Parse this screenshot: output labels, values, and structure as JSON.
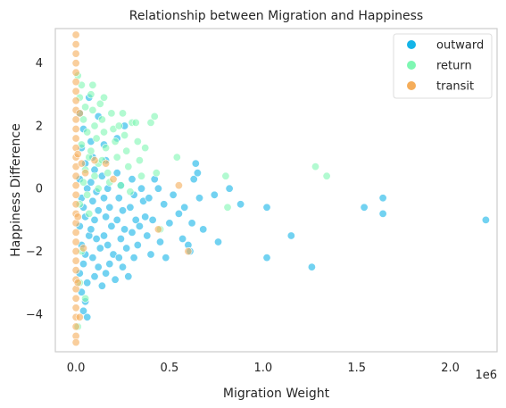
{
  "chart_data": {
    "type": "scatter",
    "title": "Relationship between Migration and Happiness",
    "xlabel": "Migration Weight",
    "ylabel": "Happiness Difference",
    "x_offset_label": "1e6",
    "xlim": [
      -0.11,
      2.25
    ],
    "ylim": [
      -5.2,
      5.1
    ],
    "x_units": "millions (×1e6)",
    "x_ticks": [
      0.0,
      0.5,
      1.0,
      1.5,
      2.0
    ],
    "x_tick_labels": [
      "0.0",
      "0.5",
      "1.0",
      "1.5",
      "2.0"
    ],
    "y_ticks": [
      -4,
      -2,
      0,
      2,
      4
    ],
    "y_tick_labels": [
      "−4",
      "−2",
      "0",
      "2",
      "4"
    ],
    "grid": false,
    "legend_position": "top-right",
    "series": [
      {
        "name": "outward",
        "color": "#14b4e8",
        "points": [
          [
            0.02,
            2.4
          ],
          [
            0.04,
            1.9
          ],
          [
            0.03,
            1.3
          ],
          [
            0.05,
            0.8
          ],
          [
            0.02,
            0.3
          ],
          [
            0.06,
            0.0
          ],
          [
            0.03,
            -0.3
          ],
          [
            0.04,
            -0.6
          ],
          [
            0.05,
            -0.9
          ],
          [
            0.02,
            -1.2
          ],
          [
            0.07,
            -1.5
          ],
          [
            0.03,
            -1.8
          ],
          [
            0.05,
            -2.1
          ],
          [
            0.04,
            -2.4
          ],
          [
            0.02,
            -2.7
          ],
          [
            0.06,
            -3.0
          ],
          [
            0.03,
            -3.3
          ],
          [
            0.05,
            -3.6
          ],
          [
            0.04,
            -3.9
          ],
          [
            0.06,
            -4.1
          ],
          [
            0.08,
            1.5
          ],
          [
            0.09,
            1.0
          ],
          [
            0.1,
            0.6
          ],
          [
            0.08,
            0.2
          ],
          [
            0.11,
            -0.1
          ],
          [
            0.09,
            -0.4
          ],
          [
            0.12,
            -0.7
          ],
          [
            0.1,
            -1.0
          ],
          [
            0.08,
            -1.3
          ],
          [
            0.11,
            -1.6
          ],
          [
            0.13,
            -1.9
          ],
          [
            0.09,
            -2.2
          ],
          [
            0.12,
            -2.5
          ],
          [
            0.1,
            -2.8
          ],
          [
            0.14,
            -3.1
          ],
          [
            0.15,
            1.4
          ],
          [
            0.16,
            0.9
          ],
          [
            0.14,
            0.4
          ],
          [
            0.17,
            0.0
          ],
          [
            0.15,
            -0.3
          ],
          [
            0.18,
            -0.6
          ],
          [
            0.16,
            -0.9
          ],
          [
            0.19,
            -1.2
          ],
          [
            0.15,
            -1.5
          ],
          [
            0.17,
            -1.8
          ],
          [
            0.2,
            -2.1
          ],
          [
            0.18,
            -2.4
          ],
          [
            0.16,
            -2.7
          ],
          [
            0.21,
            -2.9
          ],
          [
            0.22,
            0.5
          ],
          [
            0.24,
            0.1
          ],
          [
            0.23,
            -0.3
          ],
          [
            0.25,
            -0.7
          ],
          [
            0.22,
            -1.0
          ],
          [
            0.26,
            -1.3
          ],
          [
            0.24,
            -1.6
          ],
          [
            0.27,
            -1.9
          ],
          [
            0.23,
            -2.2
          ],
          [
            0.25,
            -2.5
          ],
          [
            0.28,
            -2.8
          ],
          [
            0.3,
            0.3
          ],
          [
            0.31,
            -0.2
          ],
          [
            0.29,
            -0.6
          ],
          [
            0.32,
            -1.0
          ],
          [
            0.3,
            -1.4
          ],
          [
            0.33,
            -1.8
          ],
          [
            0.31,
            -2.2
          ],
          [
            0.34,
            -1.2
          ],
          [
            0.36,
            -0.4
          ],
          [
            0.35,
            0.0
          ],
          [
            0.37,
            -0.9
          ],
          [
            0.38,
            -1.5
          ],
          [
            0.4,
            -2.1
          ],
          [
            0.39,
            -0.3
          ],
          [
            0.42,
            0.3
          ],
          [
            0.44,
            0.0
          ],
          [
            0.41,
            -1.0
          ],
          [
            0.45,
            -1.7
          ],
          [
            0.47,
            -0.5
          ],
          [
            0.48,
            -2.2
          ],
          [
            0.5,
            -1.1
          ],
          [
            0.52,
            -0.2
          ],
          [
            0.55,
            -0.8
          ],
          [
            0.57,
            -1.6
          ],
          [
            0.58,
            -0.6
          ],
          [
            0.6,
            -1.8
          ],
          [
            0.61,
            -2.0
          ],
          [
            0.62,
            -1.1
          ],
          [
            0.63,
            0.3
          ],
          [
            0.64,
            0.8
          ],
          [
            0.65,
            0.5
          ],
          [
            0.66,
            -0.3
          ],
          [
            0.68,
            -1.3
          ],
          [
            0.74,
            -0.2
          ],
          [
            0.76,
            -1.7
          ],
          [
            0.82,
            0.0
          ],
          [
            0.88,
            -0.5
          ],
          [
            1.02,
            -0.6
          ],
          [
            1.02,
            -2.2
          ],
          [
            1.15,
            -1.5
          ],
          [
            1.26,
            -2.5
          ],
          [
            1.54,
            -0.6
          ],
          [
            1.64,
            -0.3
          ],
          [
            1.64,
            -0.8
          ],
          [
            2.19,
            -1.0
          ],
          [
            0.26,
            2.0
          ],
          [
            0.12,
            2.3
          ],
          [
            0.07,
            2.9
          ],
          [
            0.22,
            1.6
          ]
        ]
      },
      {
        "name": "return",
        "color": "#7ef7b2",
        "points": [
          [
            0.01,
            3.6
          ],
          [
            0.03,
            3.3
          ],
          [
            0.02,
            2.9
          ],
          [
            0.05,
            2.6
          ],
          [
            0.04,
            2.2
          ],
          [
            0.06,
            1.8
          ],
          [
            0.03,
            1.4
          ],
          [
            0.07,
            1.0
          ],
          [
            0.05,
            0.6
          ],
          [
            0.04,
            0.2
          ],
          [
            0.06,
            -0.2
          ],
          [
            0.02,
            -0.5
          ],
          [
            0.08,
            3.0
          ],
          [
            0.09,
            2.5
          ],
          [
            0.1,
            2.0
          ],
          [
            0.11,
            1.6
          ],
          [
            0.08,
            1.2
          ],
          [
            0.12,
            0.8
          ],
          [
            0.1,
            0.4
          ],
          [
            0.13,
            2.7
          ],
          [
            0.14,
            2.2
          ],
          [
            0.15,
            1.8
          ],
          [
            0.16,
            1.3
          ],
          [
            0.14,
            0.9
          ],
          [
            0.17,
            0.5
          ],
          [
            0.19,
            2.4
          ],
          [
            0.2,
            1.9
          ],
          [
            0.21,
            1.5
          ],
          [
            0.22,
            1.0
          ],
          [
            0.23,
            2.0
          ],
          [
            0.25,
            2.4
          ],
          [
            0.26,
            1.7
          ],
          [
            0.27,
            1.2
          ],
          [
            0.28,
            0.7
          ],
          [
            0.3,
            2.1
          ],
          [
            0.32,
            2.1
          ],
          [
            0.33,
            1.5
          ],
          [
            0.34,
            0.9
          ],
          [
            0.35,
            0.4
          ],
          [
            0.37,
            1.3
          ],
          [
            0.4,
            2.1
          ],
          [
            0.42,
            2.3
          ],
          [
            0.43,
            0.5
          ],
          [
            0.45,
            -1.3
          ],
          [
            0.54,
            1.0
          ],
          [
            0.8,
            0.4
          ],
          [
            0.81,
            -0.6
          ],
          [
            1.28,
            0.7
          ],
          [
            1.34,
            0.4
          ],
          [
            0.18,
            0.2
          ],
          [
            0.12,
            0.0
          ],
          [
            0.07,
            -0.8
          ],
          [
            0.03,
            -2.0
          ],
          [
            0.02,
            -3.0
          ],
          [
            0.05,
            -3.5
          ],
          [
            0.01,
            -4.4
          ],
          [
            0.24,
            0.1
          ],
          [
            0.29,
            -0.1
          ],
          [
            0.15,
            2.9
          ],
          [
            0.09,
            3.3
          ]
        ]
      },
      {
        "name": "transit",
        "color": "#f5ad5a",
        "points": [
          [
            0.0,
            4.9
          ],
          [
            0.0,
            4.6
          ],
          [
            0.0,
            4.3
          ],
          [
            0.0,
            4.0
          ],
          [
            0.0,
            3.7
          ],
          [
            0.0,
            3.4
          ],
          [
            0.0,
            3.1
          ],
          [
            0.0,
            2.8
          ],
          [
            0.0,
            2.5
          ],
          [
            0.0,
            2.2
          ],
          [
            0.0,
            1.9
          ],
          [
            0.0,
            1.6
          ],
          [
            0.0,
            1.3
          ],
          [
            0.0,
            1.0
          ],
          [
            0.0,
            0.7
          ],
          [
            0.0,
            0.4
          ],
          [
            0.0,
            0.1
          ],
          [
            0.0,
            -0.2
          ],
          [
            0.0,
            -0.5
          ],
          [
            0.0,
            -0.8
          ],
          [
            0.0,
            -1.1
          ],
          [
            0.0,
            -1.4
          ],
          [
            0.0,
            -1.7
          ],
          [
            0.0,
            -2.0
          ],
          [
            0.0,
            -2.3
          ],
          [
            0.0,
            -2.6
          ],
          [
            0.0,
            -2.9
          ],
          [
            0.0,
            -3.2
          ],
          [
            0.0,
            -3.5
          ],
          [
            0.0,
            -3.8
          ],
          [
            0.0,
            -4.1
          ],
          [
            0.0,
            -4.4
          ],
          [
            0.0,
            -4.7
          ],
          [
            0.0,
            -4.9
          ],
          [
            0.01,
            1.1
          ],
          [
            0.01,
            -0.9
          ],
          [
            0.01,
            -3.0
          ],
          [
            0.02,
            2.4
          ],
          [
            0.03,
            0.8
          ],
          [
            0.04,
            -1.9
          ],
          [
            0.02,
            -4.1
          ],
          [
            0.05,
            0.5
          ],
          [
            0.1,
            0.9
          ],
          [
            0.16,
            0.8
          ],
          [
            0.55,
            0.1
          ],
          [
            0.6,
            -2.0
          ],
          [
            0.44,
            -1.3
          ],
          [
            0.2,
            0.3
          ]
        ]
      }
    ]
  }
}
